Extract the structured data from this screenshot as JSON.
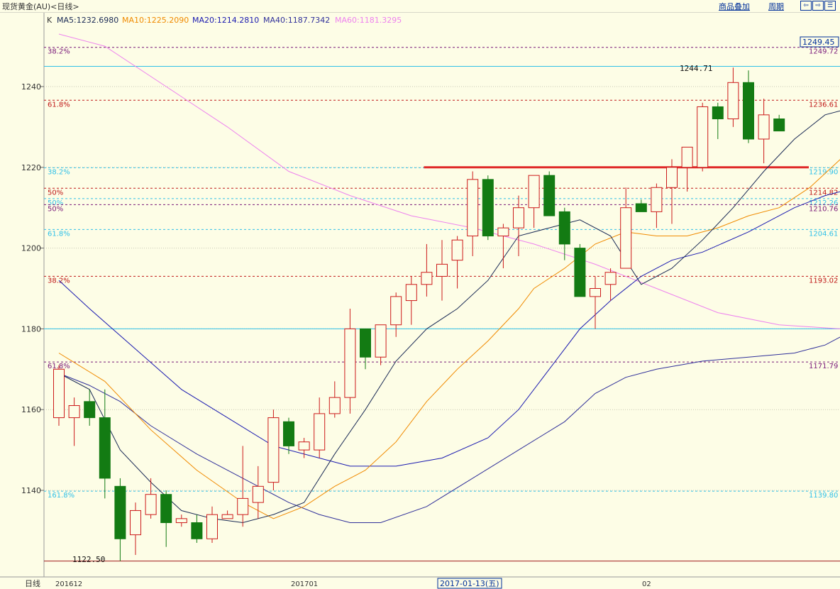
{
  "header": {
    "title": "现货黄金(AU)<日线>",
    "menu_overlay": "商品叠加",
    "menu_period": "周期",
    "btn_left": "⇦",
    "btn_right": "⇨",
    "btn_max": "☰"
  },
  "legend": {
    "k": "K",
    "ma5": "MA5:1232.6980",
    "ma10": "MA10:1225.2090",
    "ma20": "MA20:1214.2810",
    "ma40": "MA40:1187.7342",
    "ma60": "MA60:1181.3295"
  },
  "colors": {
    "background": "#fdfde6",
    "up": "#cc1a1a",
    "down_fill": "#137b13",
    "ma5": "#1a2a55",
    "ma10": "#f08a00",
    "ma20": "#1a1ab0",
    "ma40": "#30309a",
    "ma60": "#ee82ee",
    "fib_red": "#c01818",
    "fib_purple": "#7a1a7a",
    "fib_cyan": "#30c0e8",
    "support": "#e02828"
  },
  "price_badge": "1249.45",
  "xaxis": {
    "period_label": "日线",
    "labels": [
      "201612",
      "201701",
      "2017-01-13(五)",
      "02"
    ]
  },
  "annotations": {
    "high": "1244.71",
    "low": "1122.50"
  },
  "chart_data": {
    "type": "candlestick",
    "title": "现货黄金(AU)<日线>",
    "ylim": [
      1120,
      1255
    ],
    "yticks": [
      1140,
      1160,
      1180,
      1200,
      1220,
      1240
    ],
    "candles": [
      {
        "o": 1158,
        "h": 1171,
        "l": 1156,
        "c": 1170
      },
      {
        "o": 1158,
        "h": 1163,
        "l": 1151,
        "c": 1161
      },
      {
        "o": 1162,
        "h": 1165,
        "l": 1156,
        "c": 1158
      },
      {
        "o": 1158,
        "h": 1165,
        "l": 1138,
        "c": 1143
      },
      {
        "o": 1141,
        "h": 1143,
        "l": 1122.5,
        "c": 1128
      },
      {
        "o": 1129,
        "h": 1137,
        "l": 1124,
        "c": 1135
      },
      {
        "o": 1134,
        "h": 1143,
        "l": 1133,
        "c": 1139
      },
      {
        "o": 1139,
        "h": 1140,
        "l": 1126,
        "c": 1132
      },
      {
        "o": 1132,
        "h": 1134,
        "l": 1131,
        "c": 1133
      },
      {
        "o": 1132,
        "h": 1134,
        "l": 1127,
        "c": 1128
      },
      {
        "o": 1128,
        "h": 1136,
        "l": 1127,
        "c": 1134
      },
      {
        "o": 1133,
        "h": 1135,
        "l": 1133,
        "c": 1134
      },
      {
        "o": 1134,
        "h": 1151,
        "l": 1131,
        "c": 1138
      },
      {
        "o": 1137,
        "h": 1146,
        "l": 1133,
        "c": 1141
      },
      {
        "o": 1142,
        "h": 1160,
        "l": 1140,
        "c": 1158
      },
      {
        "o": 1157,
        "h": 1158,
        "l": 1149,
        "c": 1151
      },
      {
        "o": 1150,
        "h": 1153,
        "l": 1148,
        "c": 1152
      },
      {
        "o": 1150,
        "h": 1163,
        "l": 1148,
        "c": 1159
      },
      {
        "o": 1159,
        "h": 1167,
        "l": 1158,
        "c": 1163
      },
      {
        "o": 1163,
        "h": 1185,
        "l": 1159,
        "c": 1180
      },
      {
        "o": 1180,
        "h": 1180,
        "l": 1170,
        "c": 1173
      },
      {
        "o": 1173,
        "h": 1181,
        "l": 1171,
        "c": 1181
      },
      {
        "o": 1181,
        "h": 1189,
        "l": 1178,
        "c": 1188
      },
      {
        "o": 1187,
        "h": 1193,
        "l": 1181,
        "c": 1191
      },
      {
        "o": 1191,
        "h": 1201,
        "l": 1188,
        "c": 1194
      },
      {
        "o": 1193,
        "h": 1202,
        "l": 1187,
        "c": 1196
      },
      {
        "o": 1197,
        "h": 1203,
        "l": 1190,
        "c": 1202
      },
      {
        "o": 1203,
        "h": 1219,
        "l": 1198,
        "c": 1217
      },
      {
        "o": 1217,
        "h": 1218,
        "l": 1202,
        "c": 1203
      },
      {
        "o": 1203,
        "h": 1206,
        "l": 1195,
        "c": 1205
      },
      {
        "o": 1205,
        "h": 1213,
        "l": 1198,
        "c": 1210
      },
      {
        "o": 1210,
        "h": 1218,
        "l": 1205,
        "c": 1218
      },
      {
        "o": 1218,
        "h": 1219,
        "l": 1208,
        "c": 1208
      },
      {
        "o": 1209,
        "h": 1210,
        "l": 1197,
        "c": 1201
      },
      {
        "o": 1200,
        "h": 1201,
        "l": 1188,
        "c": 1188
      },
      {
        "o": 1188,
        "h": 1193,
        "l": 1180,
        "c": 1190
      },
      {
        "o": 1191,
        "h": 1195,
        "l": 1187,
        "c": 1194
      },
      {
        "o": 1195,
        "h": 1215,
        "l": 1196,
        "c": 1210
      },
      {
        "o": 1211,
        "h": 1212,
        "l": 1209,
        "c": 1209
      },
      {
        "o": 1209,
        "h": 1216,
        "l": 1205,
        "c": 1215
      },
      {
        "o": 1215,
        "h": 1222,
        "l": 1206,
        "c": 1220
      },
      {
        "o": 1220,
        "h": 1225,
        "l": 1214,
        "c": 1225
      },
      {
        "o": 1220,
        "h": 1236,
        "l": 1219,
        "c": 1235
      },
      {
        "o": 1235,
        "h": 1236,
        "l": 1227,
        "c": 1232
      },
      {
        "o": 1232,
        "h": 1244.71,
        "l": 1230,
        "c": 1241
      },
      {
        "o": 1241,
        "h": 1244,
        "l": 1226,
        "c": 1227
      },
      {
        "o": 1227,
        "h": 1237,
        "l": 1221,
        "c": 1233
      },
      {
        "o": 1232,
        "h": 1233,
        "l": 1229,
        "c": 1229
      }
    ],
    "ma5": [
      [
        0,
        1169
      ],
      [
        2,
        1165
      ],
      [
        4,
        1150
      ],
      [
        6,
        1142
      ],
      [
        8,
        1135
      ],
      [
        10,
        1133
      ],
      [
        12,
        1132
      ],
      [
        14,
        1134
      ],
      [
        16,
        1137
      ],
      [
        18,
        1149
      ],
      [
        20,
        1160
      ],
      [
        22,
        1172
      ],
      [
        24,
        1180
      ],
      [
        26,
        1185
      ],
      [
        28,
        1192
      ],
      [
        30,
        1203
      ],
      [
        32,
        1205
      ],
      [
        34,
        1207
      ],
      [
        36,
        1203
      ],
      [
        38,
        1191
      ],
      [
        40,
        1195
      ],
      [
        42,
        1202
      ],
      [
        44,
        1210
      ],
      [
        46,
        1219
      ],
      [
        48,
        1227
      ],
      [
        50,
        1233
      ],
      [
        51,
        1234
      ],
      [
        52,
        1233
      ]
    ],
    "ma10": [
      [
        0,
        1174
      ],
      [
        3,
        1167
      ],
      [
        6,
        1155
      ],
      [
        9,
        1145
      ],
      [
        12,
        1137
      ],
      [
        14,
        1133
      ],
      [
        16,
        1136
      ],
      [
        18,
        1141
      ],
      [
        20,
        1145
      ],
      [
        22,
        1152
      ],
      [
        24,
        1162
      ],
      [
        26,
        1170
      ],
      [
        28,
        1177
      ],
      [
        30,
        1185
      ],
      [
        31,
        1190
      ],
      [
        33,
        1195
      ],
      [
        35,
        1201
      ],
      [
        37,
        1204
      ],
      [
        39,
        1203
      ],
      [
        41,
        1203
      ],
      [
        43,
        1205
      ],
      [
        45,
        1208
      ],
      [
        47,
        1210
      ],
      [
        49,
        1215
      ],
      [
        51,
        1222
      ],
      [
        52,
        1226
      ]
    ],
    "ma20": [
      [
        0,
        1192
      ],
      [
        2,
        1185
      ],
      [
        5,
        1175
      ],
      [
        8,
        1165
      ],
      [
        11,
        1158
      ],
      [
        14,
        1151
      ],
      [
        17,
        1148
      ],
      [
        19,
        1146
      ],
      [
        22,
        1146
      ],
      [
        25,
        1148
      ],
      [
        28,
        1153
      ],
      [
        30,
        1160
      ],
      [
        32,
        1170
      ],
      [
        34,
        1180
      ],
      [
        36,
        1187
      ],
      [
        38,
        1193
      ],
      [
        40,
        1197
      ],
      [
        42,
        1199
      ],
      [
        45,
        1204
      ],
      [
        48,
        1210
      ],
      [
        50,
        1213
      ],
      [
        52,
        1215
      ]
    ],
    "ma40": [
      [
        0,
        1169
      ],
      [
        2,
        1166
      ],
      [
        4,
        1162
      ],
      [
        6,
        1156
      ],
      [
        9,
        1149
      ],
      [
        12,
        1143
      ],
      [
        15,
        1137
      ],
      [
        17,
        1134
      ],
      [
        19,
        1132
      ],
      [
        21,
        1132
      ],
      [
        24,
        1136
      ],
      [
        27,
        1143
      ],
      [
        30,
        1150
      ],
      [
        33,
        1157
      ],
      [
        35,
        1164
      ],
      [
        37,
        1168
      ],
      [
        39,
        1170
      ],
      [
        42,
        1172
      ],
      [
        45,
        1173
      ],
      [
        48,
        1174
      ],
      [
        50,
        1176
      ],
      [
        52,
        1180
      ],
      [
        55,
        1186
      ],
      [
        57,
        1188
      ]
    ],
    "ma60": [
      [
        0,
        1253
      ],
      [
        3,
        1250
      ],
      [
        7,
        1240
      ],
      [
        11,
        1230
      ],
      [
        15,
        1219
      ],
      [
        19,
        1213
      ],
      [
        23,
        1208
      ],
      [
        27,
        1205
      ],
      [
        31,
        1201
      ],
      [
        35,
        1196
      ],
      [
        39,
        1190
      ],
      [
        43,
        1184
      ],
      [
        47,
        1181
      ],
      [
        51,
        1180
      ],
      [
        55,
        1180
      ],
      [
        57,
        1181
      ]
    ],
    "fib_levels": [
      {
        "price": 1249.72,
        "left": "38.2%",
        "right": "1249.72",
        "color": "#7a1a7a"
      },
      {
        "price": 1236.61,
        "left": "61.8%",
        "right": "1236.61",
        "color": "#c01818"
      },
      {
        "price": 1219.9,
        "left": "38.2%",
        "right": "1219.90",
        "color": "#30c0e8"
      },
      {
        "price": 1214.82,
        "left": "50%",
        "right": "1214.82",
        "color": "#c01818"
      },
      {
        "price": 1212.26,
        "left": "50%",
        "right": "1212.26",
        "color": "#30c0e8"
      },
      {
        "price": 1210.76,
        "left": "50%",
        "right": "1210.76",
        "color": "#7a1a7a"
      },
      {
        "price": 1204.61,
        "left": "61.8%",
        "right": "1204.61",
        "color": "#30c0e8"
      },
      {
        "price": 1193.02,
        "left": "38.2%",
        "right": "1193.02",
        "color": "#c01818"
      },
      {
        "price": 1171.79,
        "left": "61.8%",
        "right": "1171.79",
        "color": "#7a1a7a"
      },
      {
        "price": 1139.8,
        "left": "161.8%",
        "right": "1139.80",
        "color": "#30c0e8"
      }
    ],
    "solid_levels": [
      1245,
      1180,
      1122.5
    ],
    "support_line": {
      "price": 1220,
      "from_index": 24
    }
  }
}
